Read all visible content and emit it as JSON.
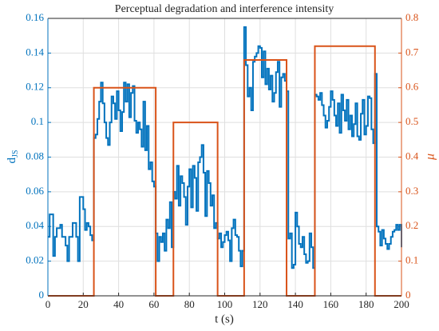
{
  "chart_data": {
    "type": "line",
    "title": "Perceptual degradation and interference intensity",
    "xlabel": "t (s)",
    "ylabel": "d",
    "ylabel_sub": "JS",
    "y2label": "μ",
    "xlim": [
      0,
      200
    ],
    "xticks": [
      0,
      20,
      40,
      60,
      80,
      100,
      120,
      140,
      160,
      180,
      200
    ],
    "ylim": [
      0,
      0.16
    ],
    "yticks": [
      0,
      0.02,
      0.04,
      0.06,
      0.08,
      0.1,
      0.12,
      0.14,
      0.16
    ],
    "y2lim": [
      0,
      0.8
    ],
    "y2ticks": [
      0,
      0.1,
      0.2,
      0.3,
      0.4,
      0.5,
      0.6,
      0.7,
      0.8
    ],
    "grid": true,
    "stairs": true,
    "series": [
      {
        "color": "#0072bd",
        "axis": "y",
        "x": [
          0,
          1,
          2,
          3,
          4,
          5,
          6,
          7,
          8,
          9,
          10,
          11,
          12,
          13,
          14,
          15,
          16,
          17,
          18,
          19,
          20,
          21,
          22,
          23,
          24,
          25,
          26,
          27,
          28,
          29,
          30,
          31,
          32,
          33,
          34,
          35,
          36,
          37,
          38,
          39,
          40,
          41,
          42,
          43,
          44,
          45,
          46,
          47,
          48,
          49,
          50,
          51,
          52,
          53,
          54,
          55,
          56,
          57,
          58,
          59,
          60,
          61,
          62,
          63,
          64,
          65,
          66,
          67,
          68,
          69,
          70,
          71,
          72,
          73,
          74,
          75,
          76,
          77,
          78,
          79,
          80,
          81,
          82,
          83,
          84,
          85,
          86,
          87,
          88,
          89,
          90,
          91,
          92,
          93,
          94,
          95,
          96,
          97,
          98,
          99,
          100,
          101,
          102,
          103,
          104,
          105,
          106,
          107,
          108,
          109,
          110,
          111,
          112,
          113,
          114,
          115,
          116,
          117,
          118,
          119,
          120,
          121,
          122,
          123,
          124,
          125,
          126,
          127,
          128,
          129,
          130,
          131,
          132,
          133,
          134,
          135,
          136,
          137,
          138,
          139,
          140,
          141,
          142,
          143,
          144,
          145,
          146,
          147,
          148,
          149,
          150,
          151,
          152,
          153,
          154,
          155,
          156,
          157,
          158,
          159,
          160,
          161,
          162,
          163,
          164,
          165,
          166,
          167,
          168,
          169,
          170,
          171,
          172,
          173,
          174,
          175,
          176,
          177,
          178,
          179,
          180,
          181,
          182,
          183,
          184,
          185,
          186,
          187,
          188,
          189,
          190,
          191,
          192,
          193,
          194,
          195,
          196,
          197,
          198,
          199,
          200
        ],
        "values": [
          0.034,
          0.047,
          0.047,
          0.023,
          0.034,
          0.039,
          0.039,
          0.041,
          0.034,
          0.034,
          0.029,
          0.02,
          0.034,
          0.034,
          0.042,
          0.042,
          0.034,
          0.02,
          0.057,
          0.057,
          0.05,
          0.038,
          0.042,
          0.04,
          0.035,
          0.032,
          0.091,
          0.093,
          0.102,
          0.112,
          0.123,
          0.111,
          0.1,
          0.091,
          0.087,
          0.1,
          0.115,
          0.111,
          0.102,
          0.118,
          0.107,
          0.095,
          0.106,
          0.123,
          0.112,
          0.122,
          0.103,
          0.117,
          0.121,
          0.101,
          0.094,
          0.1,
          0.096,
          0.086,
          0.112,
          0.084,
          0.098,
          0.073,
          0.077,
          0.066,
          0.063,
          0.036,
          0.02,
          0.034,
          0.031,
          0.036,
          0.026,
          0.044,
          0.039,
          0.054,
          0.028,
          0.06,
          0.056,
          0.075,
          0.052,
          0.069,
          0.065,
          0.057,
          0.041,
          0.063,
          0.073,
          0.051,
          0.075,
          0.068,
          0.049,
          0.077,
          0.08,
          0.087,
          0.071,
          0.046,
          0.072,
          0.065,
          0.052,
          0.058,
          0.039,
          0.042,
          0.033,
          0.036,
          0.028,
          0.031,
          0.035,
          0.037,
          0.032,
          0.02,
          0.039,
          0.044,
          0.035,
          0.034,
          0.026,
          0.017,
          0.026,
          0.155,
          0.133,
          0.115,
          0.12,
          0.107,
          0.135,
          0.138,
          0.14,
          0.144,
          0.143,
          0.126,
          0.141,
          0.122,
          0.131,
          0.119,
          0.127,
          0.112,
          0.117,
          0.129,
          0.135,
          0.109,
          0.126,
          0.128,
          0.124,
          0.118,
          0.033,
          0.036,
          0.016,
          0.018,
          0.048,
          0.04,
          0.03,
          0.028,
          0.034,
          0.024,
          0.019,
          0.02,
          0.036,
          0.028,
          0.016,
          0.116,
          0.115,
          0.113,
          0.117,
          0.11,
          0.104,
          0.097,
          0.101,
          0.109,
          0.118,
          0.113,
          0.104,
          0.098,
          0.111,
          0.094,
          0.116,
          0.107,
          0.101,
          0.113,
          0.096,
          0.104,
          0.092,
          0.099,
          0.111,
          0.092,
          0.09,
          0.105,
          0.113,
          0.093,
          0.098,
          0.115,
          0.114,
          0.096,
          0.088,
          0.128,
          0.04,
          0.037,
          0.029,
          0.038,
          0.033,
          0.03,
          0.027,
          0.03,
          0.034,
          0.037,
          0.038,
          0.041,
          0.038,
          0.041,
          0.028
        ]
      },
      {
        "color": "#d95319",
        "axis": "y2",
        "x": [
          0,
          26,
          61,
          71,
          96,
          111,
          135,
          151,
          185,
          200
        ],
        "values": [
          0,
          0.6,
          0,
          0.5,
          0,
          0.68,
          0,
          0.72,
          0,
          0
        ]
      }
    ]
  }
}
